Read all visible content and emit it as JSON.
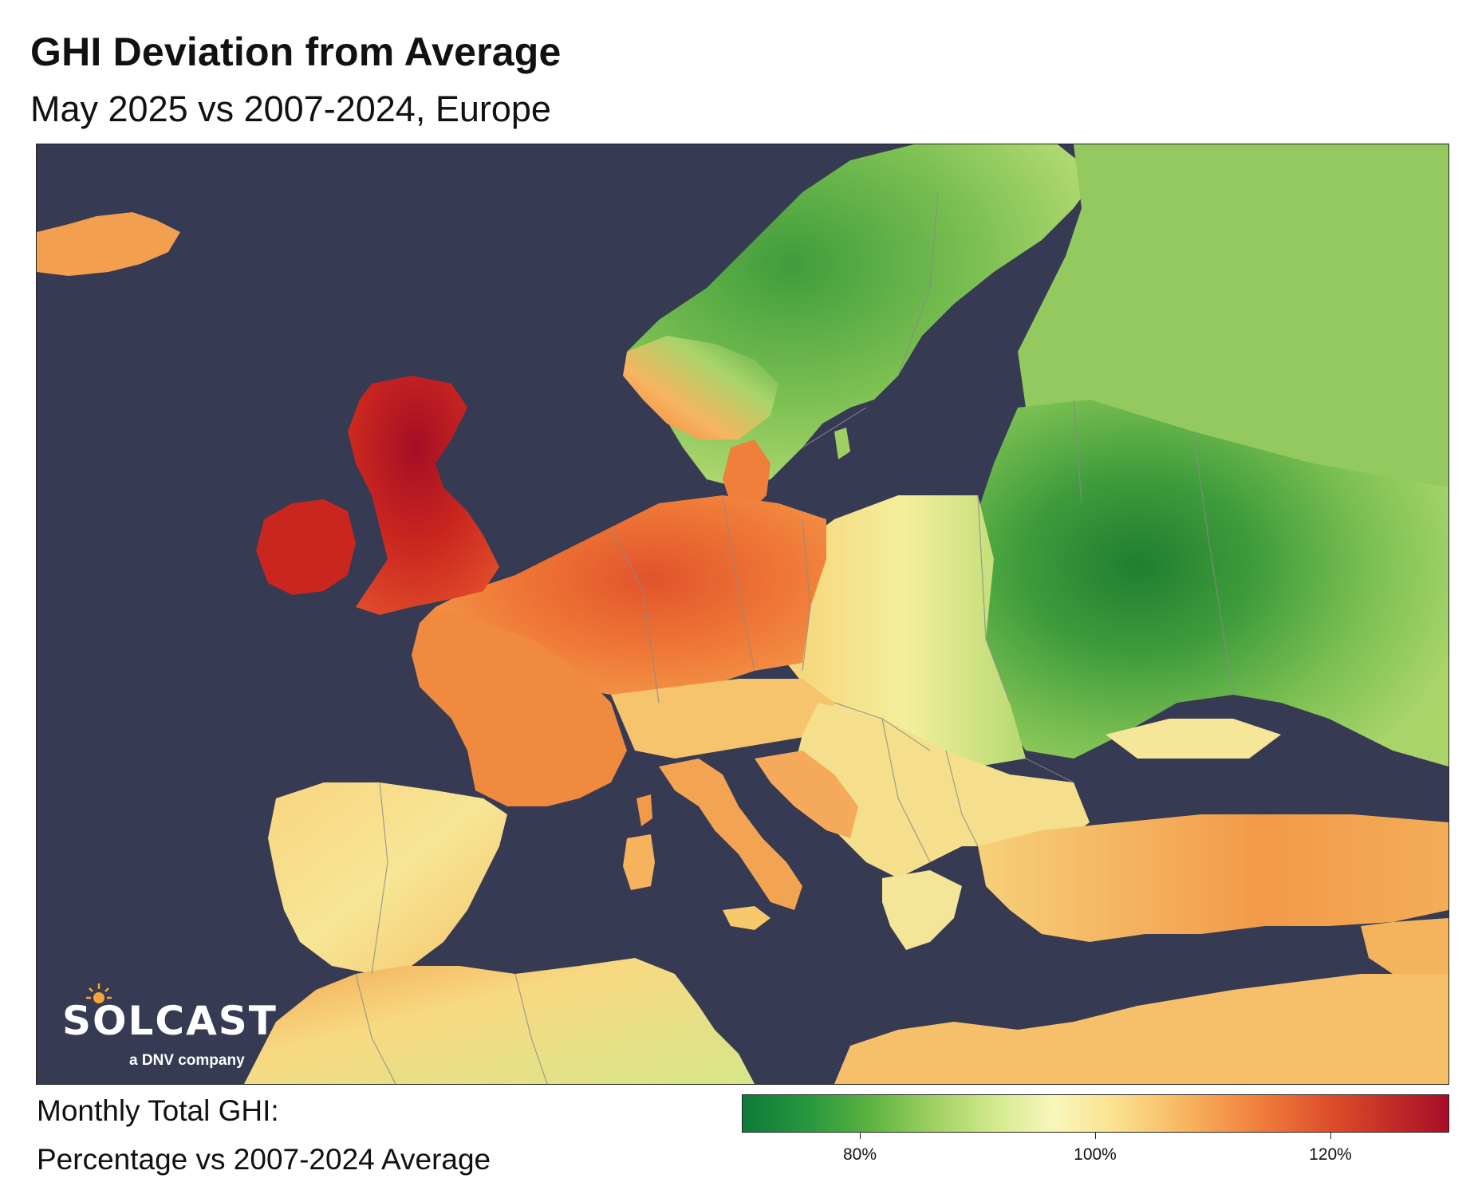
{
  "header": {
    "title": "GHI Deviation from Average",
    "subtitle": "May 2025 vs 2007-2024, Europe"
  },
  "map": {
    "ocean_color": "#363a52",
    "border_color": "#8a8a8a"
  },
  "logo": {
    "wordmark": "SOLCAST",
    "tagline": "a DNV company"
  },
  "legend": {
    "label_line1": "Monthly Total GHI:",
    "label_line2": "Percentage vs 2007-2024 Average",
    "ticks": [
      "80%",
      "100%",
      "120%"
    ],
    "color_low": "#0e7a3a",
    "color_mid": "#f8f6bb",
    "color_high": "#a50e26"
  },
  "colors": {
    "deep_red": "#b8171e",
    "red": "#d93a26",
    "orange_red": "#e8612f",
    "orange": "#f08a3e",
    "light_orange": "#f6ad5a",
    "yellow_orange": "#f7c96a",
    "pale_yellow": "#f4eea0",
    "light_green": "#b8dc74",
    "green": "#7cc052",
    "mid_green": "#4ea640",
    "dark_green": "#1f7e30"
  }
}
